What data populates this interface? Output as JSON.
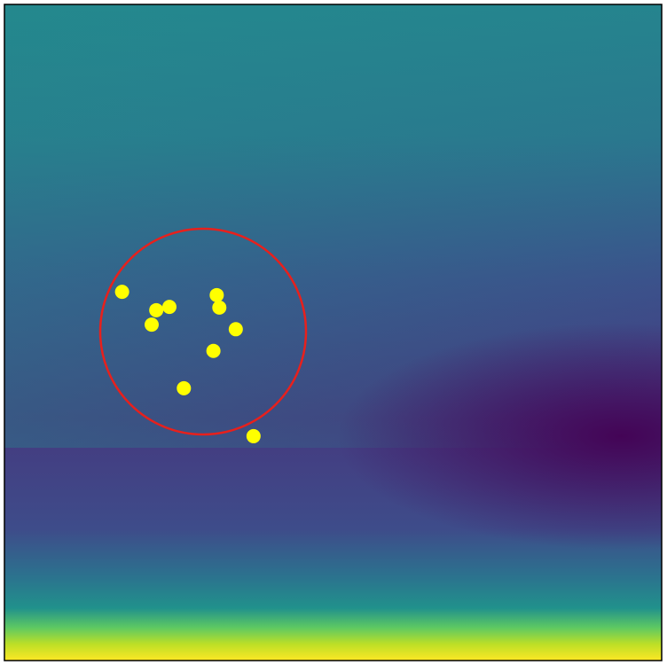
{
  "chart_data": {
    "type": "scatter",
    "x": [
      0.179,
      0.231,
      0.251,
      0.224,
      0.323,
      0.327,
      0.352,
      0.318,
      0.273,
      0.379
    ],
    "y": [
      0.562,
      0.534,
      0.539,
      0.512,
      0.557,
      0.538,
      0.505,
      0.472,
      0.415,
      0.342
    ],
    "color": "#ffff00",
    "xlim": [
      0,
      1
    ],
    "ylim": [
      0,
      1
    ]
  }
}
